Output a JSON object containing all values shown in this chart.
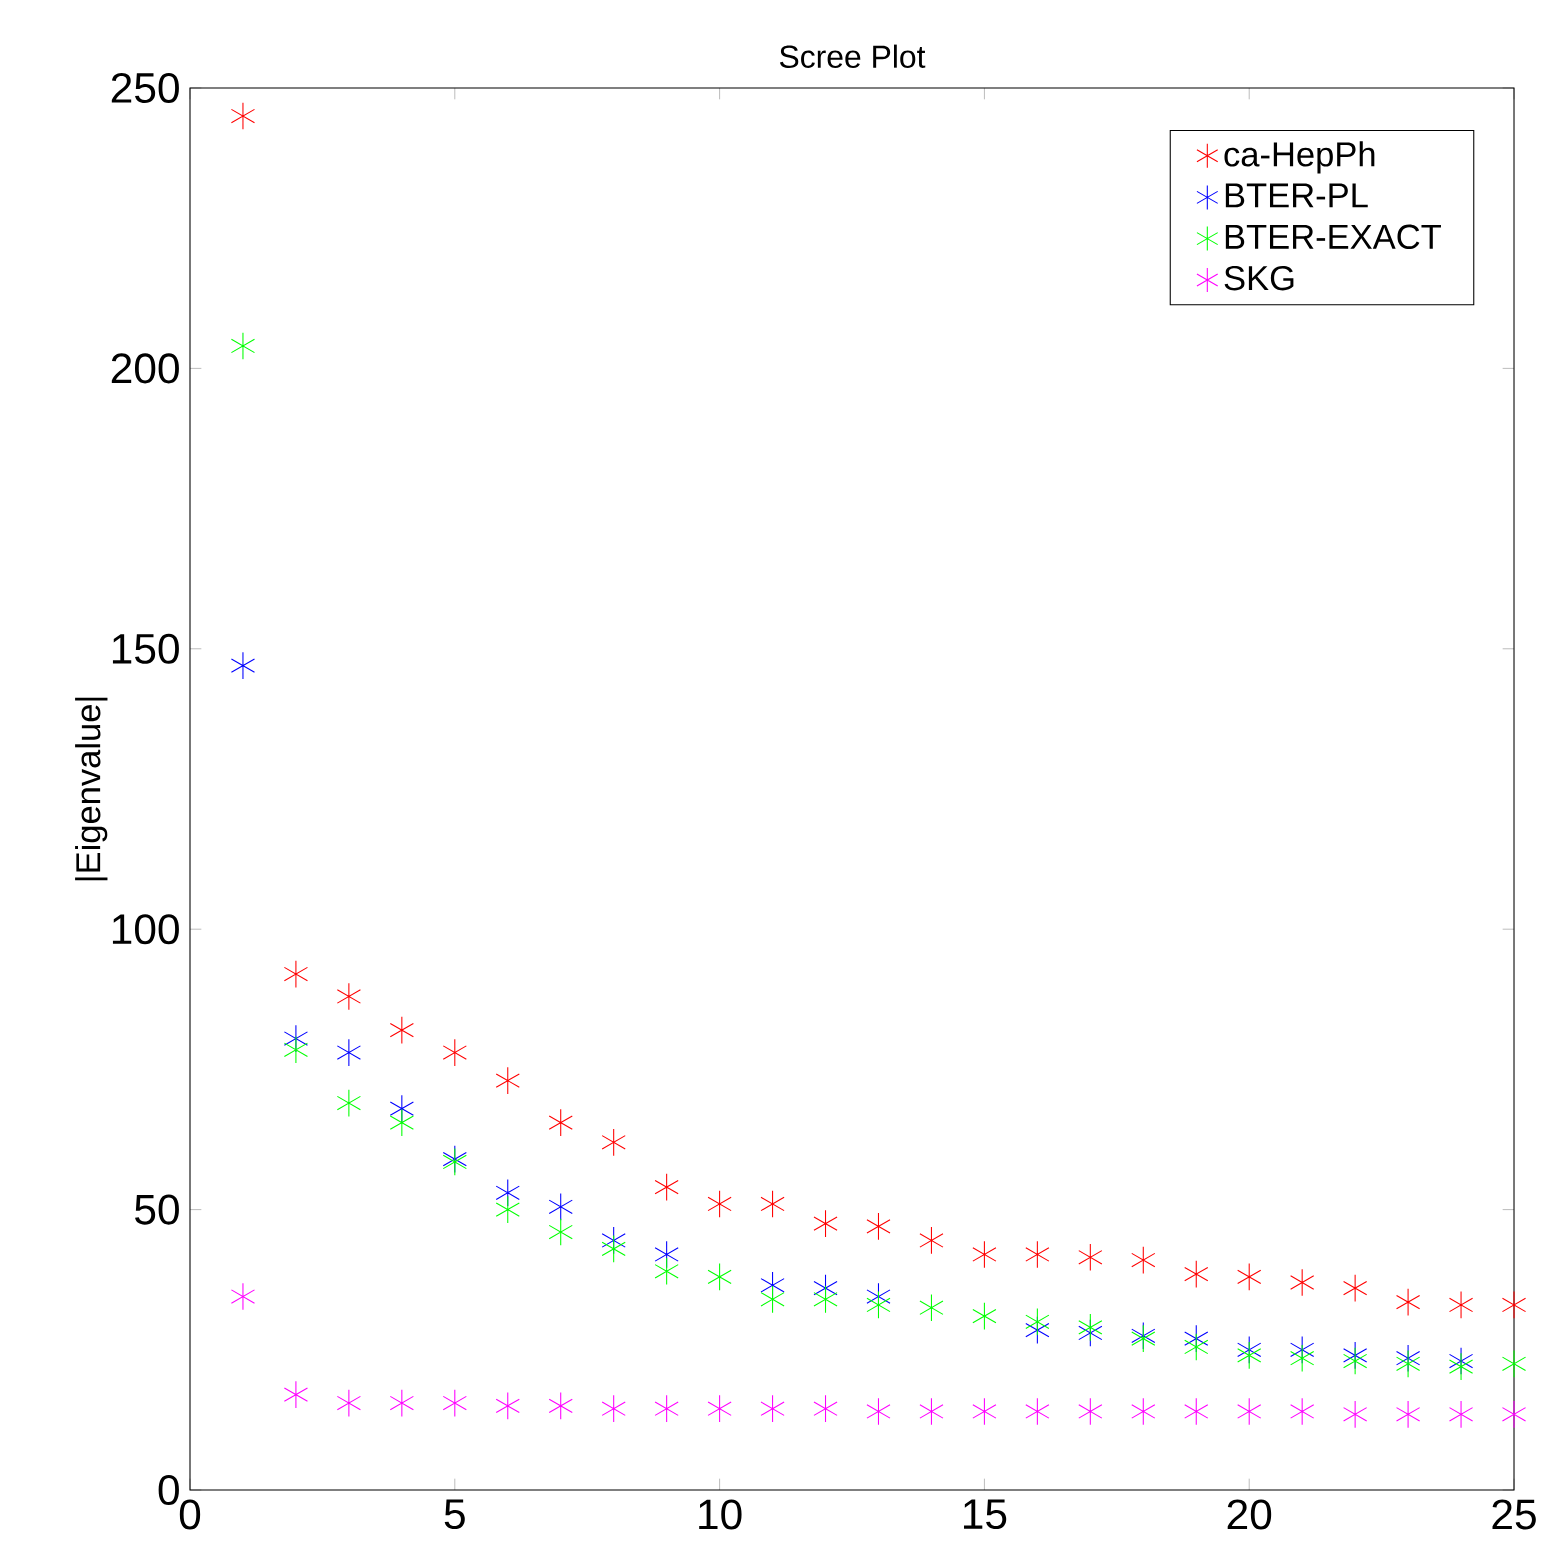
{
  "chart_data": {
    "type": "scatter",
    "title": "Scree Plot",
    "ylabel": "|Eigenvalue|",
    "x": [
      1,
      2,
      3,
      4,
      5,
      6,
      7,
      8,
      9,
      10,
      11,
      12,
      13,
      14,
      15,
      16,
      17,
      18,
      19,
      20,
      21,
      22,
      23,
      24,
      25
    ],
    "series": [
      {
        "name": "ca-HepPh",
        "color": "#ff0000",
        "values": [
          245,
          92,
          88,
          82,
          78,
          73,
          65.5,
          62,
          54,
          51,
          51,
          47.5,
          47,
          44.5,
          42,
          42,
          41.5,
          41,
          38.5,
          38,
          37,
          36,
          33.5,
          33,
          33
        ]
      },
      {
        "name": "BTER-PL",
        "color": "#0000ff",
        "values": [
          147,
          80.5,
          78,
          68,
          59,
          53,
          50.5,
          44.5,
          42,
          null,
          36.5,
          36,
          34.5,
          null,
          null,
          28.5,
          28,
          27.5,
          27,
          25,
          25,
          24,
          23.5,
          23,
          null
        ]
      },
      {
        "name": "BTER-EXACT",
        "color": "#00ff00",
        "values": [
          204,
          78.5,
          69,
          65.5,
          58.5,
          50,
          46,
          43,
          39,
          38,
          34,
          34,
          33,
          32.5,
          31,
          30,
          29,
          27,
          25.5,
          24,
          23.5,
          23,
          22.5,
          22,
          22.5
        ]
      },
      {
        "name": "SKG",
        "color": "#ff00ff",
        "values": [
          34.5,
          17,
          15.5,
          15.5,
          15.5,
          15,
          15,
          14.5,
          14.5,
          14.5,
          14.5,
          14.5,
          14,
          14,
          14,
          14,
          14,
          14,
          14,
          14,
          14,
          13.5,
          13.5,
          13.5,
          13.5
        ]
      }
    ],
    "xlim": [
      0,
      25
    ],
    "ylim": [
      0,
      250
    ],
    "xticks": [
      0,
      5,
      10,
      15,
      20,
      25
    ],
    "yticks": [
      0,
      50,
      100,
      150,
      200,
      250
    ],
    "grid": false,
    "legend": "top right",
    "marker": "cross"
  }
}
